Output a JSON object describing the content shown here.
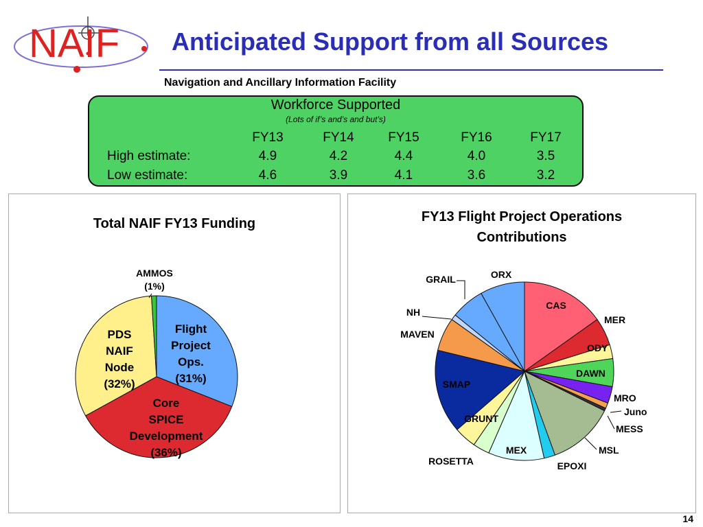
{
  "header": {
    "logo_text": "NAIF",
    "title": "Anticipated Support from all Sources",
    "subtitle": "Navigation and Ancillary Information Facility"
  },
  "workforce": {
    "title": "Workforce Supported",
    "note": "(Lots of if’s and’s and but’s)",
    "years": [
      "FY13",
      "FY14",
      "FY15",
      "FY16",
      "FY17"
    ],
    "rows": [
      {
        "label": "High estimate:",
        "values": [
          "4.9",
          "4.2",
          "4.4",
          "4.0",
          "3.5"
        ]
      },
      {
        "label": "Low estimate:",
        "values": [
          "4.6",
          "3.9",
          "4.1",
          "3.6",
          "3.2"
        ]
      }
    ],
    "color": "#4fd264"
  },
  "chart_data": [
    {
      "type": "pie",
      "title": "Total NAIF FY13 Funding",
      "slices": [
        {
          "label": [
            "Flight",
            "Project",
            "Ops.",
            "(31%)"
          ],
          "value": 31,
          "color": "#66aaff"
        },
        {
          "label": [
            "Core",
            "SPICE",
            "Development",
            "(36%)"
          ],
          "value": 36,
          "color": "#dd2a30"
        },
        {
          "label": [
            "PDS",
            "NAIF",
            "Node",
            "(32%)"
          ],
          "value": 32,
          "color": "#fff08c"
        },
        {
          "label": [
            "AMMOS",
            "(1%)"
          ],
          "value": 1,
          "color": "#3bc43b"
        }
      ]
    },
    {
      "type": "pie",
      "title": "FY13 Flight Project Operations Contributions",
      "title_lines": [
        "FY13 Flight Project Operations",
        "Contributions"
      ],
      "slices": [
        {
          "label": "CAS",
          "value": 15,
          "color": "#ff6074"
        },
        {
          "label": "MER",
          "value": 5,
          "color": "#dd2a30"
        },
        {
          "label": "ODY",
          "value": 2.5,
          "color": "#fff59a"
        },
        {
          "label": "DAWN",
          "value": 5,
          "color": "#4fd65a"
        },
        {
          "label": "MRO",
          "value": 3,
          "color": "#7722ee"
        },
        {
          "label": "Juno",
          "value": 1,
          "color": "#f4a050"
        },
        {
          "label": "MESS",
          "value": 0.5,
          "color": "#333333"
        },
        {
          "label": "MSL",
          "value": 12,
          "color": "#a5bb92"
        },
        {
          "label": "EPOXI",
          "value": 2,
          "color": "#22ccee"
        },
        {
          "label": "MEX",
          "value": 10,
          "color": "#dcffff"
        },
        {
          "label": "ROSETTA",
          "value": 3,
          "color": "#d8ffcc"
        },
        {
          "label": "GRUNT",
          "value": 4,
          "color": "#fff59a"
        },
        {
          "label": "SMAP",
          "value": 15,
          "color": "#0a2aa0"
        },
        {
          "label": "MAVEN",
          "value": 6,
          "color": "#f59a4a"
        },
        {
          "label": "NH",
          "value": 1,
          "color": "#c0d8ff"
        },
        {
          "label": "GRAIL",
          "value": 6,
          "color": "#66aaff"
        },
        {
          "label": "ORX",
          "value": 8,
          "color": "#66aaff"
        }
      ]
    }
  ],
  "page_number": "14"
}
